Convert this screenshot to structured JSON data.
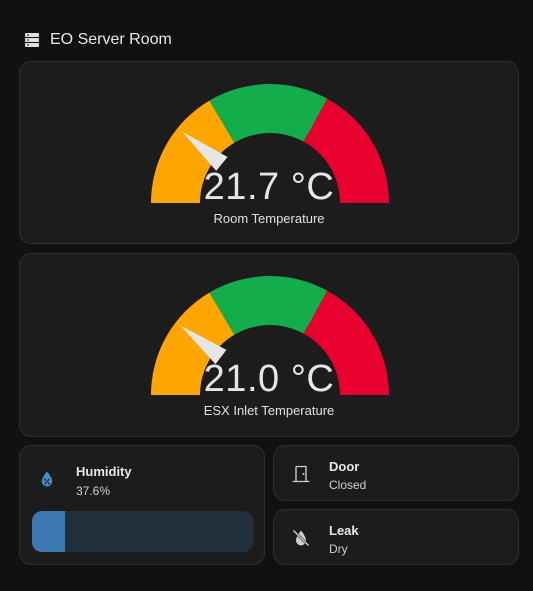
{
  "section": {
    "title": "EO Server Room",
    "icon": "server-icon"
  },
  "gauges": [
    {
      "value": 21.7,
      "display": "21.7 °C",
      "label": "Room Temperature",
      "min": 0,
      "max": 100
    },
    {
      "value": 21.0,
      "display": "21.0 °C",
      "label": "ESX Inlet Temperature",
      "min": 0,
      "max": 100
    }
  ],
  "gauge_colors": {
    "low": "#ffa600",
    "normal": "#13ae4b",
    "high": "#e8002f",
    "needle": "#e6e6e6"
  },
  "gauge_segments_fraction": {
    "low_end": 0.33,
    "normal_end": 0.66
  },
  "humidity": {
    "name": "Humidity",
    "state": "37.6%",
    "fill_fraction": 0.15,
    "icon": "water-percent-icon"
  },
  "door": {
    "name": "Door",
    "state": "Closed",
    "icon": "door-closed-icon"
  },
  "leak": {
    "name": "Leak",
    "state": "Dry",
    "icon": "water-off-icon"
  }
}
